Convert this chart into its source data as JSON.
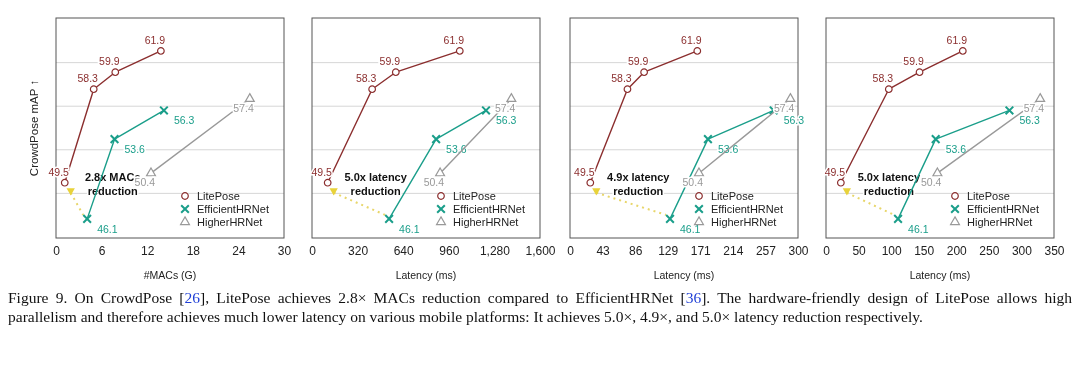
{
  "chart_data": [
    {
      "type": "line",
      "xlabel": "#MACs (G)",
      "ylabel": "CrowdPose mAP ↑",
      "xlim": [
        0,
        30
      ],
      "xticks": [
        0,
        6,
        12,
        18,
        24,
        30
      ],
      "ylim": [
        44.3,
        65
      ],
      "yticks": [
        {
          "value": 48.5,
          "label": null
        },
        {
          "value": 52.6,
          "label": null
        },
        {
          "value": 56.7,
          "label": null
        },
        {
          "value": 60.8,
          "label": null
        }
      ],
      "tick_labels": "x",
      "grid": "y",
      "legend": "bottom right",
      "data_labels": true,
      "series": [
        {
          "name": "LitePose",
          "color": "#8b2e2e",
          "marker": "circle",
          "x": [
            1.15,
            4.96,
            7.8,
            13.8
          ],
          "values": [
            49.5,
            58.3,
            59.9,
            61.9
          ]
        },
        {
          "name": "EfficientHRNet",
          "color": "#1a9e8a",
          "marker": "cross",
          "x": [
            4.1,
            7.7,
            14.2
          ],
          "values": [
            46.1,
            53.6,
            56.3
          ]
        },
        {
          "name": "HigherHRNet",
          "color": "#999999",
          "marker": "triangle",
          "x": [
            12.5,
            25.5
          ],
          "values": [
            50.4,
            57.4
          ]
        }
      ],
      "annotations": [
        "2.8x MACs reduction",
        "Figure 9. On CrowdPose [26], LitePose achieves 2.8× MACs reduction compared to EfficientHRNet [36]. The hardware-friendly design of LitePose allows high parallelism and therefore achieves much lower latency on various mobile platforms: It achieves 5.0×, 4.9×, and 5.0× latency reduction respectively."
      ]
    },
    {
      "type": "line",
      "xlabel": "Latency (ms)",
      "xlim": [
        0,
        1600
      ],
      "xticks": [
        0,
        320,
        640,
        960,
        {
          "value": 1280,
          "label": "1,280"
        },
        {
          "value": 1600,
          "label": "1,600"
        }
      ],
      "ylim": [
        44.3,
        65
      ],
      "yticks": [
        {
          "value": 48.5,
          "label": null
        },
        {
          "value": 52.6,
          "label": null
        },
        {
          "value": 56.7,
          "label": null
        },
        {
          "value": 60.8,
          "label": null
        }
      ],
      "tick_labels": "x",
      "grid": "y",
      "legend": "bottom right",
      "data_labels": true,
      "series": [
        {
          "name": "LitePose",
          "color": "#8b2e2e",
          "marker": "circle",
          "x": [
            110,
            422,
            588,
            1037
          ],
          "values": [
            49.5,
            58.3,
            59.9,
            61.9
          ]
        },
        {
          "name": "EfficientHRNet",
          "color": "#1a9e8a",
          "marker": "cross",
          "x": [
            541,
            871,
            1221
          ],
          "values": [
            46.1,
            53.6,
            56.3
          ]
        },
        {
          "name": "HigherHRNet",
          "color": "#999999",
          "marker": "triangle",
          "x": [
            899,
            1399
          ],
          "values": [
            50.4,
            57.4
          ]
        }
      ],
      "annotations": [
        "5.0x latency reduction"
      ]
    },
    {
      "type": "line",
      "xlabel": "Latency (ms)",
      "xlim": [
        0,
        300
      ],
      "xticks": [
        0,
        {
          "value": 42.857,
          "label": "43"
        },
        {
          "value": 85.714,
          "label": "86"
        },
        {
          "value": 128.571,
          "label": "129"
        },
        {
          "value": 171.429,
          "label": "171"
        },
        {
          "value": 214.286,
          "label": "214"
        },
        {
          "value": 257.143,
          "label": "257"
        },
        300
      ],
      "ylim": [
        44.3,
        65
      ],
      "yticks": [
        {
          "value": 48.5,
          "label": null
        },
        {
          "value": 52.6,
          "label": null
        },
        {
          "value": 56.7,
          "label": null
        },
        {
          "value": 60.8,
          "label": null
        }
      ],
      "tick_labels": "x",
      "grid": "y",
      "legend": "bottom right",
      "data_labels": true,
      "series": [
        {
          "name": "LitePose",
          "color": "#8b2e2e",
          "marker": "circle",
          "x": [
            26.7,
            75.6,
            97.5,
            167.5
          ],
          "values": [
            49.5,
            58.3,
            59.9,
            61.9
          ]
        },
        {
          "name": "EfficientHRNet",
          "color": "#1a9e8a",
          "marker": "cross",
          "x": [
            131.6,
            181.5,
            268
          ],
          "values": [
            46.1,
            53.6,
            56.3
          ]
        },
        {
          "name": "HigherHRNet",
          "color": "#999999",
          "marker": "triangle",
          "x": [
            169.7,
            290
          ],
          "values": [
            50.4,
            57.4
          ]
        }
      ],
      "annotations": [
        "4.9x latency reduction"
      ]
    },
    {
      "type": "line",
      "xlabel": "Latency (ms)",
      "xlim": [
        0,
        350
      ],
      "xticks": [
        0,
        50,
        100,
        150,
        200,
        250,
        300,
        350
      ],
      "ylim": [
        44.3,
        65
      ],
      "yticks": [
        {
          "value": 48.5,
          "label": null
        },
        {
          "value": 52.6,
          "label": null
        },
        {
          "value": 56.7,
          "label": null
        },
        {
          "value": 60.8,
          "label": null
        }
      ],
      "tick_labels": "x",
      "grid": "y",
      "legend": "bottom right",
      "data_labels": true,
      "series": [
        {
          "name": "LitePose",
          "color": "#8b2e2e",
          "marker": "circle",
          "x": [
            22.8,
            96.4,
            143.6,
            210
          ],
          "values": [
            49.5,
            58.3,
            59.9,
            61.9
          ]
        },
        {
          "name": "EfficientHRNet",
          "color": "#1a9e8a",
          "marker": "cross",
          "x": [
            110.6,
            168.4,
            281.6
          ],
          "values": [
            46.1,
            53.6,
            56.3
          ]
        },
        {
          "name": "HigherHRNet",
          "color": "#999999",
          "marker": "triangle",
          "x": [
            171,
            328.8
          ],
          "values": [
            50.4,
            57.4
          ]
        }
      ],
      "annotations": [
        "5.0x latency reduction"
      ]
    }
  ]
}
